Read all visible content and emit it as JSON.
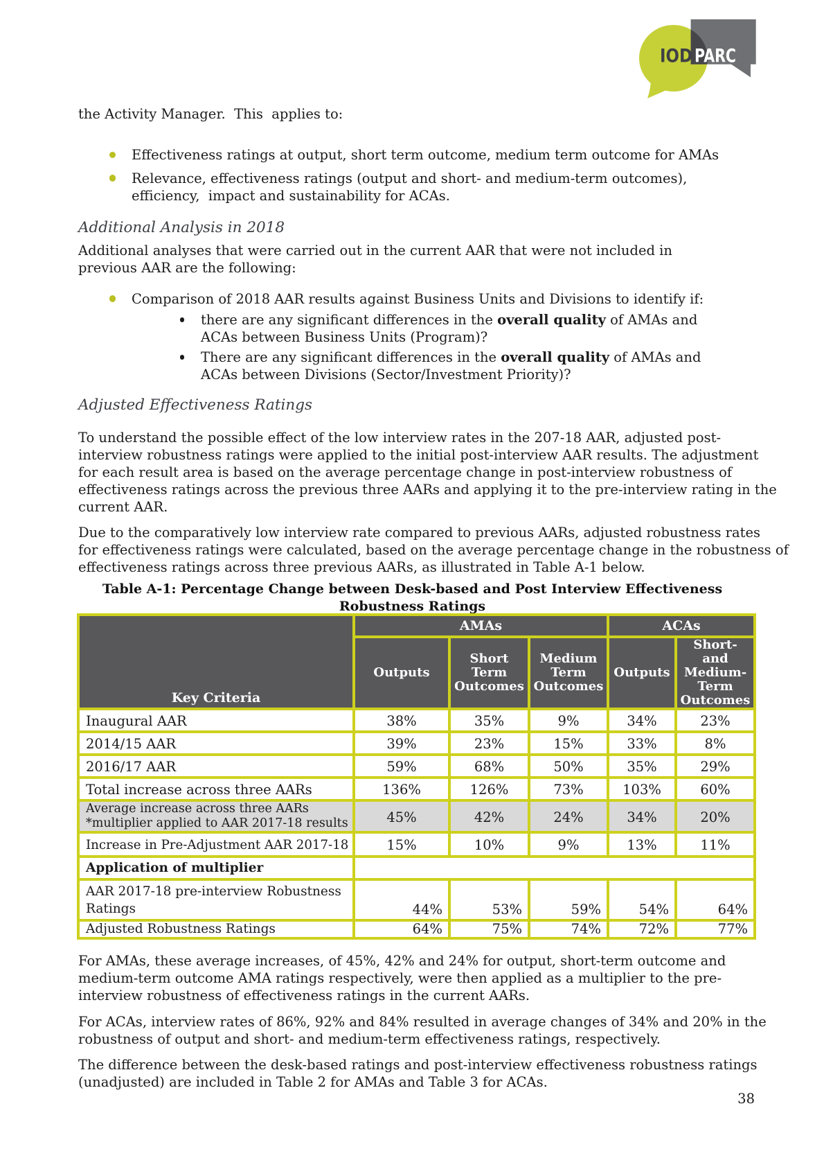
{
  "logo": {
    "iod": "IOD",
    "parc": "PARC",
    "bubble_green": "#c6d138",
    "box_grey": "#6f7073",
    "overlap_dark": "#46464a",
    "iod_text_color": "#3f4045",
    "parc_text_color": "#ffffff"
  },
  "colors": {
    "table_border_yellow": "#cdd11e",
    "table_header_grey": "#58585a",
    "table_shaded_row": "#d9d9d9",
    "bullet_green": "#b9c020",
    "heading_grey": "#3b3e43"
  },
  "intro": "the Activity Manager.  This  applies to:",
  "bullets": [
    "Effectiveness ratings at output, short term outcome, medium term outcome for AMAs",
    "Relevance, effectiveness ratings (output and short- and medium-term outcomes),\nefficiency,  impact and sustainability for ACAs."
  ],
  "heading_1": "Additional Analysis in 2018",
  "para_1": "Additional analyses that were carried out in the current AAR that were not included in\nprevious AAR are the following:",
  "bullet_comparison": "Comparison of 2018 AAR results against Business Units and Divisions to identify if:",
  "sub_bullets": [
    {
      "pre": "there are any significant differences in the ",
      "bold": "overall quality",
      "post": " of AMAs and\nACAs between Business Units (Program)?"
    },
    {
      "pre": "There are any significant differences in the ",
      "bold": "overall quality",
      "post": " of AMAs and\nACAs between Divisions (Sector/Investment Priority)?"
    }
  ],
  "heading_2": "Adjusted Effectiveness Ratings",
  "para_2": "To understand the possible effect of the low interview rates in the 207-18 AAR, adjusted post-\ninterview robustness ratings were applied to the initial post-interview AAR results. The adjustment\nfor each result area is based on the average percentage change in post-interview robustness of\neffectiveness ratings across the previous three AARs and applying it to the pre-interview rating in the\ncurrent AAR.",
  "para_3": "Due to the comparatively low interview rate compared to previous AARs, adjusted robustness rates\nfor effectiveness ratings were calculated, based on the average percentage change in the robustness of\neffectiveness ratings across three previous AARs, as illustrated in Table A-1 below.",
  "table": {
    "title": "Table A-1: Percentage Change between Desk-based and Post Interview Effectiveness\nRobustness Ratings",
    "key_criteria_label": "Key Criteria",
    "groups": [
      {
        "label": "AMAs",
        "span": 3
      },
      {
        "label": "ACAs",
        "span": 2
      }
    ],
    "col_headers": [
      "Outputs",
      "Short\nTerm\nOutcomes",
      "Medium\nTerm\nOutcomes",
      "Outputs",
      "Short-\nand\nMedium-\nTerm\nOutcomes"
    ],
    "rows": [
      {
        "label": "Inaugural AAR",
        "values": [
          "38%",
          "35%",
          "9%",
          "34%",
          "23%"
        ],
        "shaded": false
      },
      {
        "label": "2014/15 AAR",
        "values": [
          "39%",
          "23%",
          "15%",
          "33%",
          "8%"
        ],
        "shaded": false
      },
      {
        "label": "2016/17 AAR",
        "values": [
          "59%",
          "68%",
          "50%",
          "35%",
          "29%"
        ],
        "shaded": false
      },
      {
        "label": "Total increase across three AARs",
        "values": [
          "136%",
          "126%",
          "73%",
          "103%",
          "60%"
        ],
        "shaded": false
      },
      {
        "label": "Average increase across three AARs\n*multiplier applied to AAR 2017-18 results",
        "values": [
          "45%",
          "42%",
          "24%",
          "34%",
          "20%"
        ],
        "shaded": true
      },
      {
        "label": "Increase in Pre-Adjustment AAR 2017-18",
        "values": [
          "15%",
          "10%",
          "9%",
          "13%",
          "11%"
        ],
        "shaded": false
      }
    ],
    "multiplier_row_label": "Application of multiplier",
    "bottom_rows": [
      {
        "label": "AAR 2017-18 pre-interview Robustness\nRatings",
        "values": [
          "44%",
          "53%",
          "59%",
          "54%",
          "64%"
        ]
      },
      {
        "label": "Adjusted Robustness Ratings",
        "values": [
          "64%",
          "75%",
          "74%",
          "72%",
          "77%"
        ]
      }
    ]
  },
  "para_4": "For AMAs, these average increases, of 45%, 42% and 24% for output, short-term outcome and\nmedium-term outcome AMA ratings respectively, were then applied as a multiplier to the pre-\ninterview robustness of effectiveness ratings in the current AARs.",
  "para_5": "For ACAs, interview rates of 86%, 92% and 84% resulted in average changes of 34% and 20% in the\nrobustness of output and short- and medium-term effectiveness ratings, respectively.",
  "para_6": "The difference between the desk-based ratings and post-interview effectiveness robustness ratings\n(unadjusted) are included in Table 2 for AMAs and Table 3 for ACAs.",
  "page_number": "38"
}
